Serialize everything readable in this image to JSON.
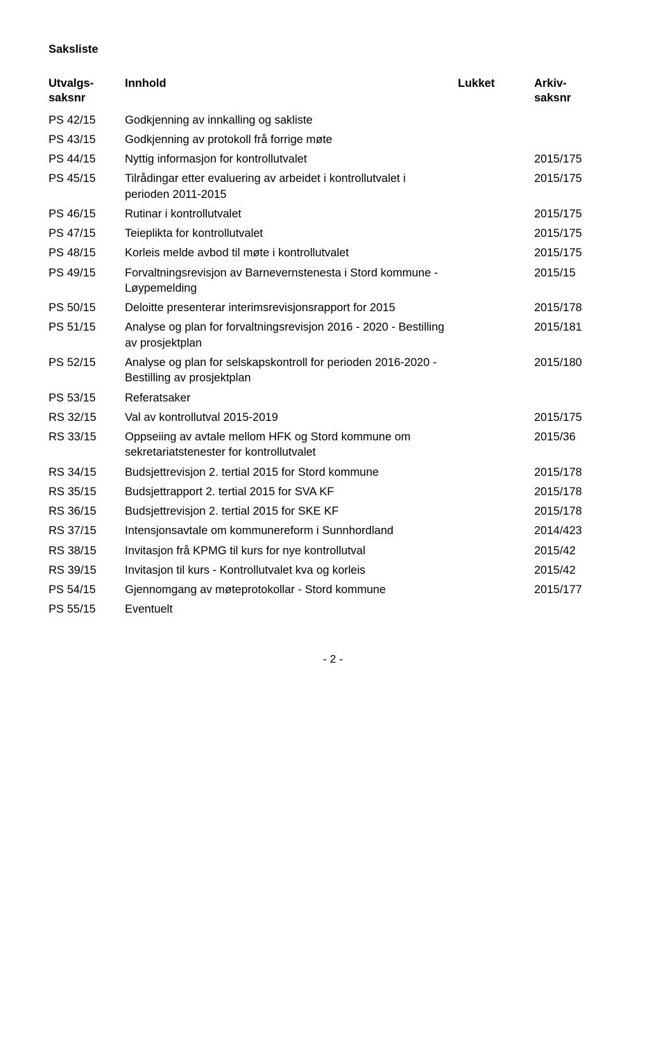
{
  "title": "Saksliste",
  "headers": {
    "saksnr_line1": "Utvalgs-",
    "saksnr_line2": "saksnr",
    "innhold": "Innhold",
    "lukket": "Lukket",
    "arkiv_line1": "Arkiv-",
    "arkiv_line2": "saksnr"
  },
  "rows": [
    {
      "saksnr": "PS 42/15",
      "innhold": "Godkjenning av innkalling og sakliste",
      "arkiv": ""
    },
    {
      "saksnr": "PS 43/15",
      "innhold": "Godkjenning av protokoll frå forrige møte",
      "arkiv": ""
    },
    {
      "saksnr": "PS 44/15",
      "innhold": "Nyttig informasjon for kontrollutvalet",
      "arkiv": "2015/175"
    },
    {
      "saksnr": "PS 45/15",
      "innhold": "Tilrådingar etter evaluering av arbeidet i kontrollutvalet i perioden 2011-2015",
      "arkiv": "2015/175"
    },
    {
      "saksnr": "PS 46/15",
      "innhold": "Rutinar i kontrollutvalet",
      "arkiv": "2015/175"
    },
    {
      "saksnr": "PS 47/15",
      "innhold": "Teieplikta for kontrollutvalet",
      "arkiv": "2015/175"
    },
    {
      "saksnr": "PS 48/15",
      "innhold": "Korleis melde avbod til møte i kontrollutvalet",
      "arkiv": "2015/175"
    },
    {
      "saksnr": "PS 49/15",
      "innhold": "Forvaltningsrevisjon av Barnevernstenesta i Stord kommune - Løypemelding",
      "arkiv": "2015/15"
    },
    {
      "saksnr": "PS 50/15",
      "innhold": "Deloitte presenterar interimsrevisjonsrapport for 2015",
      "arkiv": "2015/178"
    },
    {
      "saksnr": "PS 51/15",
      "innhold": "Analyse og plan for forvaltningsrevisjon 2016 - 2020 - Bestilling av prosjektplan",
      "arkiv": "2015/181"
    },
    {
      "saksnr": "PS 52/15",
      "innhold": "Analyse og plan for selskapskontroll for perioden 2016-2020 - Bestilling av prosjektplan",
      "arkiv": "2015/180"
    },
    {
      "saksnr": "PS 53/15",
      "innhold": "Referatsaker",
      "arkiv": ""
    },
    {
      "saksnr": "RS 32/15",
      "innhold": "Val av kontrollutval 2015-2019",
      "arkiv": "2015/175"
    },
    {
      "saksnr": "RS 33/15",
      "innhold": "Oppseiing av avtale mellom HFK og Stord kommune om sekretariatstenester for kontrollutvalet",
      "arkiv": "2015/36"
    },
    {
      "saksnr": "RS 34/15",
      "innhold": "Budsjettrevisjon 2. tertial 2015 for Stord kommune",
      "arkiv": "2015/178"
    },
    {
      "saksnr": "RS 35/15",
      "innhold": "Budsjettrapport 2. tertial 2015 for SVA KF",
      "arkiv": "2015/178"
    },
    {
      "saksnr": "RS 36/15",
      "innhold": "Budsjettrevisjon 2. tertial 2015 for SKE KF",
      "arkiv": "2015/178"
    },
    {
      "saksnr": "RS 37/15",
      "innhold": "Intensjonsavtale om kommunereform i Sunnhordland",
      "arkiv": "2014/423"
    },
    {
      "saksnr": "RS 38/15",
      "innhold": "Invitasjon frå KPMG til kurs for nye kontrollutval",
      "arkiv": "2015/42"
    },
    {
      "saksnr": "RS 39/15",
      "innhold": "Invitasjon til kurs - Kontrollutvalet kva og korleis",
      "arkiv": "2015/42"
    },
    {
      "saksnr": "PS 54/15",
      "innhold": "Gjennomgang av møteprotokollar - Stord kommune",
      "arkiv": "2015/177"
    },
    {
      "saksnr": "PS 55/15",
      "innhold": "Eventuelt",
      "arkiv": ""
    }
  ],
  "page_num": "- 2 -"
}
